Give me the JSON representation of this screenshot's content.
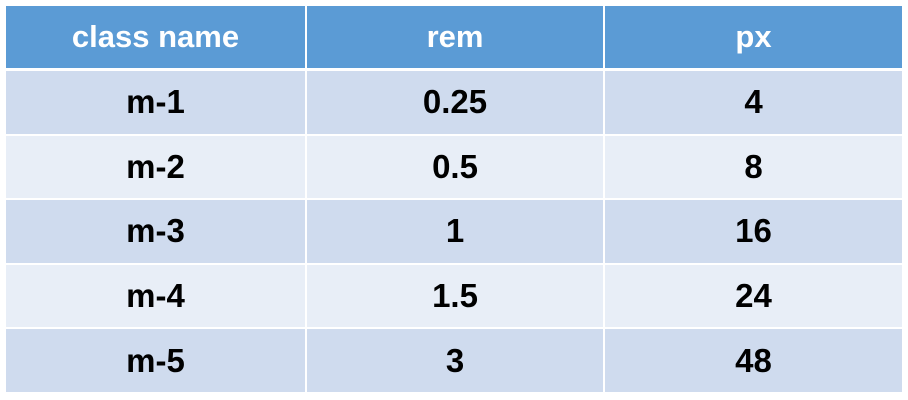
{
  "table": {
    "headers": [
      "class name",
      "rem",
      "px"
    ],
    "rows": [
      [
        "m-1",
        "0.25",
        "4"
      ],
      [
        "m-2",
        "0.5",
        "8"
      ],
      [
        "m-3",
        "1",
        "16"
      ],
      [
        "m-4",
        "1.5",
        "24"
      ],
      [
        "m-5",
        "3",
        "48"
      ]
    ]
  },
  "colors": {
    "header_bg": "#5b9bd5",
    "row_odd_bg": "#cfdbee",
    "row_even_bg": "#e8eef7",
    "header_text": "#ffffff",
    "cell_text": "#000000"
  }
}
